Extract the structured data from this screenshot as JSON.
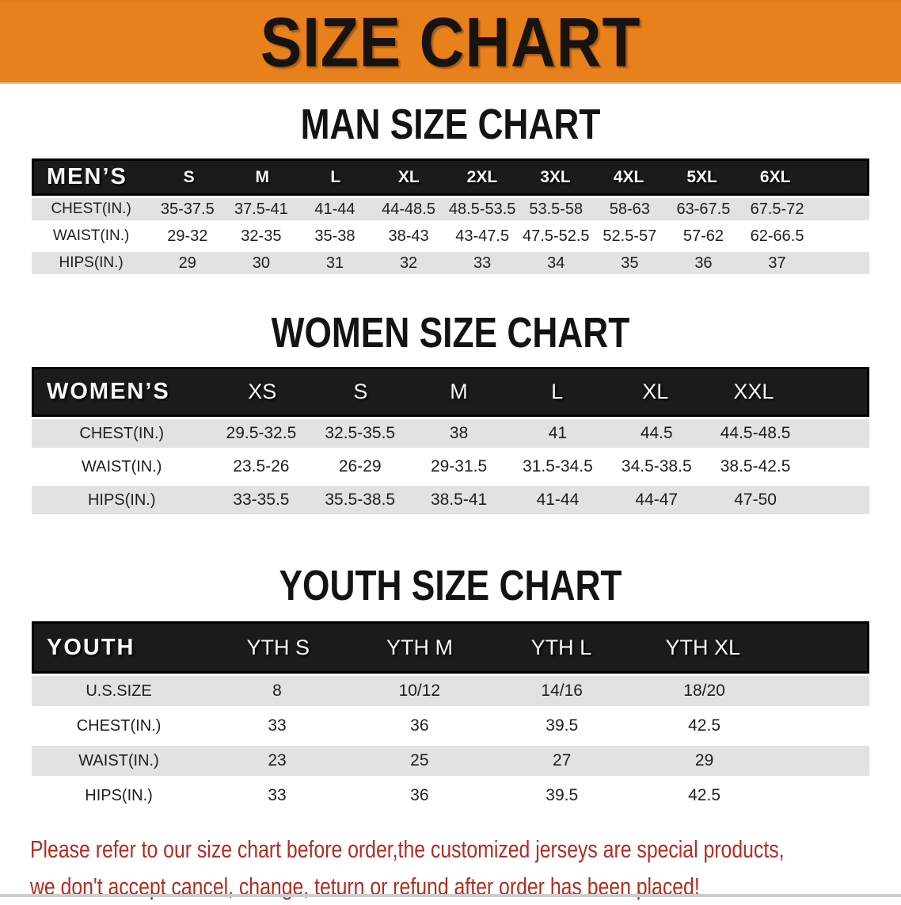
{
  "banner": {
    "title": "SIZE CHART"
  },
  "colors": {
    "banner_bg": "#e8811c",
    "banner_text": "#171310",
    "header_band": "#1b1b1b",
    "row_stripe": "#e2e2e2",
    "disclaimer_red": "#b22c22"
  },
  "tables": [
    {
      "id": "men",
      "title": "MAN SIZE CHART",
      "header_label": "MEN’S",
      "columns": [
        "S",
        "M",
        "L",
        "XL",
        "2XL",
        "3XL",
        "4XL",
        "5XL",
        "6XL"
      ],
      "rows": [
        {
          "label": "CHEST(IN.)",
          "values": [
            "35-37.5",
            "37.5-41",
            "41-44",
            "44-48.5",
            "48.5-53.5",
            "53.5-58",
            "58-63",
            "63-67.5",
            "67.5-72"
          ]
        },
        {
          "label": "WAIST(IN.)",
          "values": [
            "29-32",
            "32-35",
            "35-38",
            "38-43",
            "43-47.5",
            "47.5-52.5",
            "52.5-57",
            "57-62",
            "62-66.5"
          ]
        },
        {
          "label": "HIPS(IN.)",
          "values": [
            "29",
            "30",
            "31",
            "32",
            "33",
            "34",
            "35",
            "36",
            "37"
          ]
        }
      ]
    },
    {
      "id": "women",
      "title": "WOMEN SIZE CHART",
      "header_label": "WOMEN’S",
      "columns": [
        "XS",
        "S",
        "M",
        "L",
        "XL",
        "XXL"
      ],
      "rows": [
        {
          "label": "CHEST(IN.)",
          "values": [
            "29.5-32.5",
            "32.5-35.5",
            "38",
            "41",
            "44.5",
            "44.5-48.5"
          ]
        },
        {
          "label": "WAIST(IN.)",
          "values": [
            "23.5-26",
            "26-29",
            "29-31.5",
            "31.5-34.5",
            "34.5-38.5",
            "38.5-42.5"
          ]
        },
        {
          "label": "HIPS(IN.)",
          "values": [
            "33-35.5",
            "35.5-38.5",
            "38.5-41",
            "41-44",
            "44-47",
            "47-50"
          ]
        }
      ]
    },
    {
      "id": "youth",
      "title": "YOUTH SIZE CHART",
      "header_label": "YOUTH",
      "columns": [
        "YTH S",
        "YTH M",
        "YTH L",
        "YTH XL"
      ],
      "rows": [
        {
          "label": "U.S.SIZE",
          "values": [
            "8",
            "10/12",
            "14/16",
            "18/20"
          ]
        },
        {
          "label": "CHEST(IN.)",
          "values": [
            "33",
            "36",
            "39.5",
            "42.5"
          ]
        },
        {
          "label": "WAIST(IN.)",
          "values": [
            "23",
            "25",
            "27",
            "29"
          ]
        },
        {
          "label": "HIPS(IN.)",
          "values": [
            "33",
            "36",
            "39.5",
            "42.5"
          ]
        }
      ]
    }
  ],
  "disclaimer": {
    "line1": "Please refer to our size chart before order,the customized jerseys are special products,",
    "line2": "we don't accept cancel, change, teturn or refund after order has been placed!"
  }
}
